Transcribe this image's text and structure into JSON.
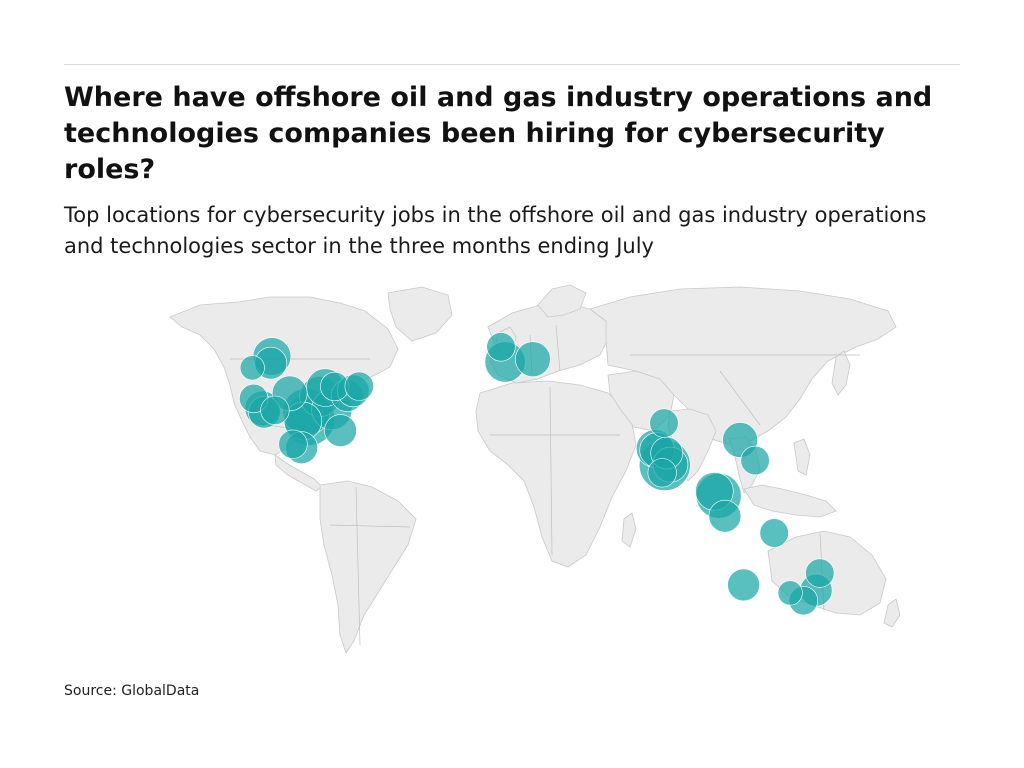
{
  "header": {
    "title": "Where have offshore oil and gas industry operations and technologies companies been hiring for cybersecurity roles?",
    "subtitle": "Top locations for cybersecurity jobs in the offshore oil and gas industry operations and technologies sector in the three months ending July"
  },
  "footer": {
    "source": "Source: GlobalData"
  },
  "colors": {
    "bubble": "#1aa6a6",
    "land": "#ebebeb",
    "border": "#c9c9c9",
    "title": "#111111"
  },
  "chart_data": {
    "type": "scatter",
    "title": "Where have offshore oil and gas industry operations and technologies companies been hiring for cybersecurity roles?",
    "subtitle": "Top locations for cybersecurity jobs in the offshore oil and gas industry operations and technologies sector in the three months ending July",
    "xlabel": "",
    "ylabel": "",
    "legend": "none",
    "grid": false,
    "points": [
      {
        "x": -122.4,
        "y": 37.8,
        "r": 3
      },
      {
        "x": -118.2,
        "y": 34.1,
        "r": 5
      },
      {
        "x": -117.2,
        "y": 32.7,
        "r": 4
      },
      {
        "x": -112.1,
        "y": 33.4,
        "r": 3
      },
      {
        "x": -104.9,
        "y": 39.7,
        "r": 5
      },
      {
        "x": -96.8,
        "y": 32.8,
        "r": 10
      },
      {
        "x": -95.4,
        "y": 29.8,
        "r": 12
      },
      {
        "x": -98.5,
        "y": 29.4,
        "r": 6
      },
      {
        "x": -90.2,
        "y": 38.6,
        "r": 7
      },
      {
        "x": -84.4,
        "y": 33.7,
        "r": 7
      },
      {
        "x": -80.2,
        "y": 25.8,
        "r": 4
      },
      {
        "x": -87.6,
        "y": 41.9,
        "r": 6
      },
      {
        "x": -83.0,
        "y": 42.3,
        "r": 3
      },
      {
        "x": -77.0,
        "y": 38.9,
        "r": 4
      },
      {
        "x": -74.0,
        "y": 40.7,
        "r": 4
      },
      {
        "x": -71.1,
        "y": 42.4,
        "r": 3
      },
      {
        "x": -113.5,
        "y": 53.5,
        "r": 6
      },
      {
        "x": -114.1,
        "y": 51.0,
        "r": 4
      },
      {
        "x": -123.1,
        "y": 49.3,
        "r": 2
      },
      {
        "x": -99.1,
        "y": 19.4,
        "r": 4
      },
      {
        "x": -103.3,
        "y": 20.7,
        "r": 3
      },
      {
        "x": -0.1,
        "y": 51.5,
        "r": 7
      },
      {
        "x": -2.1,
        "y": 57.1,
        "r": 3
      },
      {
        "x": 13.4,
        "y": 52.5,
        "r": 5
      },
      {
        "x": 72.9,
        "y": 19.1,
        "r": 6
      },
      {
        "x": 73.9,
        "y": 18.5,
        "r": 5
      },
      {
        "x": 77.6,
        "y": 12.9,
        "r": 12
      },
      {
        "x": 80.3,
        "y": 13.1,
        "r": 5
      },
      {
        "x": 78.5,
        "y": 17.4,
        "r": 4
      },
      {
        "x": 77.2,
        "y": 28.6,
        "r": 3
      },
      {
        "x": 76.3,
        "y": 10.0,
        "r": 3
      },
      {
        "x": 103.8,
        "y": 1.4,
        "r": 9
      },
      {
        "x": 101.7,
        "y": 3.1,
        "r": 6
      },
      {
        "x": 106.8,
        "y": -6.2,
        "r": 4
      },
      {
        "x": 114.2,
        "y": 22.3,
        "r": 5
      },
      {
        "x": 121.5,
        "y": 14.6,
        "r": 3
      },
      {
        "x": 115.9,
        "y": -31.9,
        "r": 4
      },
      {
        "x": 130.8,
        "y": -12.5,
        "r": 3
      },
      {
        "x": 153.0,
        "y": -27.5,
        "r": 3
      },
      {
        "x": 151.2,
        "y": -33.9,
        "r": 4
      },
      {
        "x": 145.0,
        "y": -37.8,
        "r": 3
      },
      {
        "x": 138.6,
        "y": -34.9,
        "r": 2
      }
    ]
  }
}
